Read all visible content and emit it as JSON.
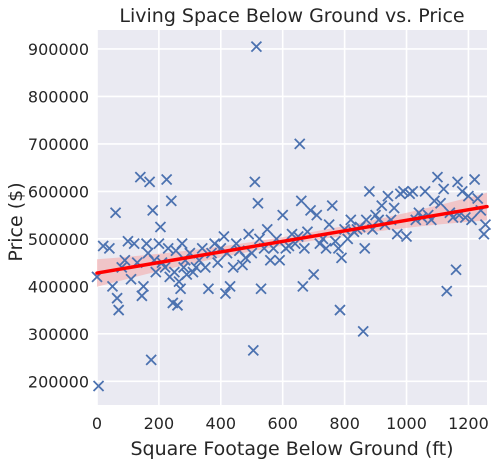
{
  "chart_data": {
    "type": "scatter",
    "title": "Living Space Below Ground vs. Price",
    "xlabel": "Square Footage Below Ground (ft)",
    "ylabel": "Price ($)",
    "xlim": [
      0,
      1260
    ],
    "ylim": [
      150000,
      940000
    ],
    "x_ticks": [
      0,
      200,
      400,
      600,
      800,
      1000,
      1200
    ],
    "y_ticks": [
      200000,
      300000,
      400000,
      500000,
      600000,
      700000,
      800000,
      900000
    ],
    "grid": true,
    "background": "#eaeaf2",
    "marker": "x",
    "colors": {
      "points": "#4c72b0",
      "regression_line": "#ff0000",
      "confidence_band": "#f4a6a6"
    },
    "regression_line": {
      "x": [
        0,
        1260
      ],
      "y": [
        428000,
        568000
      ]
    },
    "points": [
      [
        0,
        420000
      ],
      [
        5,
        190000
      ],
      [
        20,
        485000
      ],
      [
        40,
        480000
      ],
      [
        50,
        400000
      ],
      [
        60,
        555000
      ],
      [
        65,
        375000
      ],
      [
        70,
        350000
      ],
      [
        80,
        440000
      ],
      [
        90,
        455000
      ],
      [
        100,
        495000
      ],
      [
        110,
        415000
      ],
      [
        120,
        490000
      ],
      [
        130,
        450000
      ],
      [
        140,
        630000
      ],
      [
        145,
        380000
      ],
      [
        150,
        400000
      ],
      [
        160,
        490000
      ],
      [
        165,
        470000
      ],
      [
        170,
        620000
      ],
      [
        175,
        245000
      ],
      [
        180,
        560000
      ],
      [
        185,
        455000
      ],
      [
        190,
        430000
      ],
      [
        200,
        490000
      ],
      [
        205,
        525000
      ],
      [
        210,
        450000
      ],
      [
        220,
        440000
      ],
      [
        225,
        625000
      ],
      [
        230,
        480000
      ],
      [
        235,
        420000
      ],
      [
        240,
        580000
      ],
      [
        245,
        365000
      ],
      [
        250,
        430000
      ],
      [
        255,
        475000
      ],
      [
        260,
        360000
      ],
      [
        265,
        410000
      ],
      [
        270,
        395000
      ],
      [
        275,
        490000
      ],
      [
        280,
        440000
      ],
      [
        285,
        455000
      ],
      [
        290,
        425000
      ],
      [
        300,
        470000
      ],
      [
        310,
        430000
      ],
      [
        320,
        440000
      ],
      [
        330,
        455000
      ],
      [
        340,
        480000
      ],
      [
        350,
        440000
      ],
      [
        360,
        395000
      ],
      [
        370,
        470000
      ],
      [
        380,
        490000
      ],
      [
        390,
        450000
      ],
      [
        400,
        480000
      ],
      [
        410,
        505000
      ],
      [
        415,
        385000
      ],
      [
        420,
        470000
      ],
      [
        430,
        400000
      ],
      [
        440,
        440000
      ],
      [
        450,
        490000
      ],
      [
        460,
        475000
      ],
      [
        470,
        445000
      ],
      [
        480,
        460000
      ],
      [
        490,
        510000
      ],
      [
        500,
        470000
      ],
      [
        505,
        265000
      ],
      [
        510,
        620000
      ],
      [
        515,
        905000
      ],
      [
        520,
        575000
      ],
      [
        525,
        500000
      ],
      [
        530,
        395000
      ],
      [
        540,
        480000
      ],
      [
        550,
        520000
      ],
      [
        560,
        455000
      ],
      [
        570,
        480000
      ],
      [
        580,
        500000
      ],
      [
        590,
        455000
      ],
      [
        600,
        550000
      ],
      [
        610,
        480000
      ],
      [
        620,
        485000
      ],
      [
        630,
        510000
      ],
      [
        640,
        490000
      ],
      [
        650,
        505000
      ],
      [
        655,
        700000
      ],
      [
        660,
        580000
      ],
      [
        665,
        400000
      ],
      [
        670,
        480000
      ],
      [
        680,
        515000
      ],
      [
        690,
        560000
      ],
      [
        700,
        425000
      ],
      [
        710,
        550000
      ],
      [
        720,
        490000
      ],
      [
        730,
        500000
      ],
      [
        740,
        480000
      ],
      [
        750,
        530000
      ],
      [
        760,
        570000
      ],
      [
        770,
        495000
      ],
      [
        780,
        480000
      ],
      [
        785,
        350000
      ],
      [
        790,
        460000
      ],
      [
        800,
        520000
      ],
      [
        810,
        500000
      ],
      [
        820,
        540000
      ],
      [
        830,
        515000
      ],
      [
        840,
        520000
      ],
      [
        850,
        525000
      ],
      [
        860,
        305000
      ],
      [
        865,
        480000
      ],
      [
        870,
        540000
      ],
      [
        880,
        600000
      ],
      [
        890,
        520000
      ],
      [
        900,
        550000
      ],
      [
        910,
        540000
      ],
      [
        920,
        570000
      ],
      [
        930,
        530000
      ],
      [
        940,
        590000
      ],
      [
        950,
        540000
      ],
      [
        960,
        565000
      ],
      [
        970,
        510000
      ],
      [
        980,
        595000
      ],
      [
        990,
        600000
      ],
      [
        1000,
        505000
      ],
      [
        1010,
        595000
      ],
      [
        1020,
        600000
      ],
      [
        1030,
        540000
      ],
      [
        1040,
        555000
      ],
      [
        1050,
        545000
      ],
      [
        1060,
        600000
      ],
      [
        1070,
        550000
      ],
      [
        1080,
        540000
      ],
      [
        1090,
        580000
      ],
      [
        1100,
        630000
      ],
      [
        1110,
        575000
      ],
      [
        1120,
        605000
      ],
      [
        1130,
        390000
      ],
      [
        1140,
        555000
      ],
      [
        1150,
        545000
      ],
      [
        1160,
        435000
      ],
      [
        1165,
        620000
      ],
      [
        1170,
        550000
      ],
      [
        1180,
        600000
      ],
      [
        1190,
        545000
      ],
      [
        1200,
        590000
      ],
      [
        1210,
        540000
      ],
      [
        1220,
        625000
      ],
      [
        1230,
        585000
      ],
      [
        1240,
        560000
      ],
      [
        1250,
        510000
      ],
      [
        1255,
        530000
      ]
    ]
  }
}
